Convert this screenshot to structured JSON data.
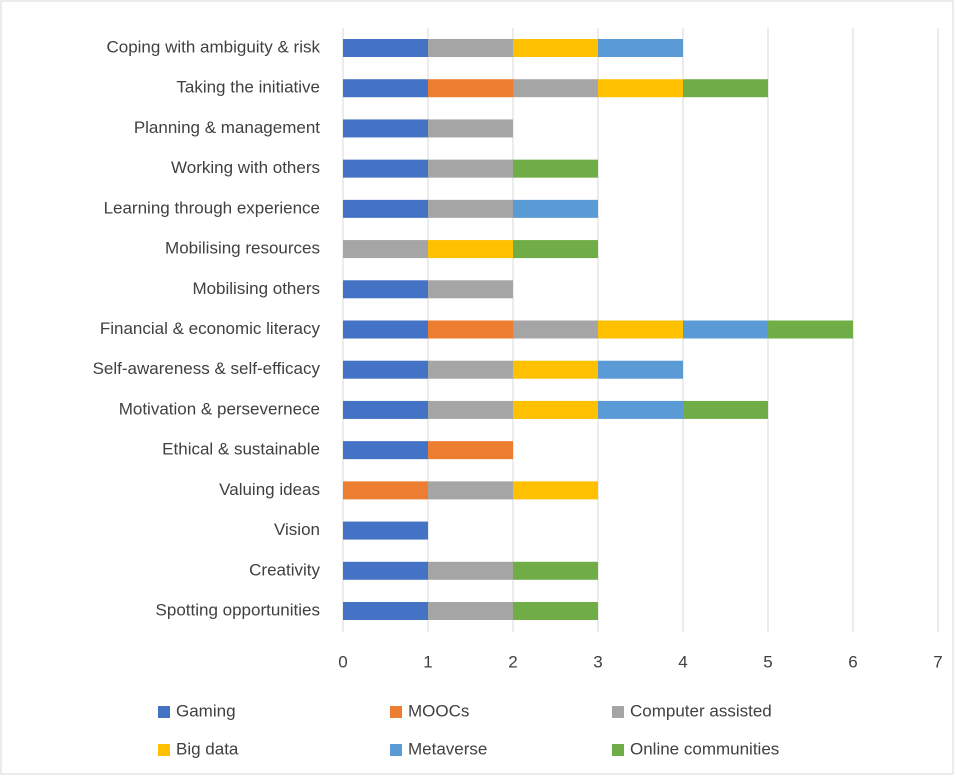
{
  "chart_data": {
    "type": "bar",
    "orientation": "horizontal",
    "stacked": true,
    "categories": [
      "Coping with ambiguity & risk",
      "Taking the initiative",
      "Planning & management",
      "Working with others",
      "Learning through experience",
      "Mobilising resources",
      "Mobilising others",
      "Financial & economic literacy",
      "Self-awareness & self-efficacy",
      "Motivation & persevernece",
      "Ethical & sustainable",
      "Valuing ideas",
      "Vision",
      "Creativity",
      "Spotting opportunities"
    ],
    "series": [
      {
        "name": "Gaming",
        "color": "#4472c4",
        "values": [
          1,
          1,
          1,
          1,
          1,
          0,
          1,
          1,
          1,
          1,
          1,
          0,
          1,
          1,
          1
        ]
      },
      {
        "name": "MOOCs",
        "color": "#ed7d31",
        "values": [
          0,
          1,
          0,
          0,
          0,
          0,
          0,
          1,
          0,
          0,
          1,
          1,
          0,
          0,
          0
        ]
      },
      {
        "name": "Computer assisted",
        "color": "#a5a5a5",
        "values": [
          1,
          1,
          1,
          1,
          1,
          1,
          1,
          1,
          1,
          1,
          0,
          1,
          0,
          1,
          1
        ]
      },
      {
        "name": "Big data",
        "color": "#ffc000",
        "values": [
          1,
          1,
          0,
          0,
          0,
          1,
          0,
          1,
          1,
          1,
          0,
          1,
          0,
          0,
          0
        ]
      },
      {
        "name": "Metaverse",
        "color": "#5b9bd5",
        "values": [
          1,
          0,
          0,
          0,
          1,
          0,
          0,
          1,
          1,
          1,
          0,
          0,
          0,
          0,
          0
        ]
      },
      {
        "name": "Online communities",
        "color": "#70ad47",
        "values": [
          0,
          1,
          0,
          1,
          0,
          1,
          0,
          1,
          0,
          1,
          0,
          0,
          0,
          1,
          1
        ]
      }
    ],
    "xlim": [
      0,
      7
    ],
    "xticks": [
      0,
      1,
      2,
      3,
      4,
      5,
      6,
      7
    ],
    "grid": true,
    "legend": "bottom"
  }
}
